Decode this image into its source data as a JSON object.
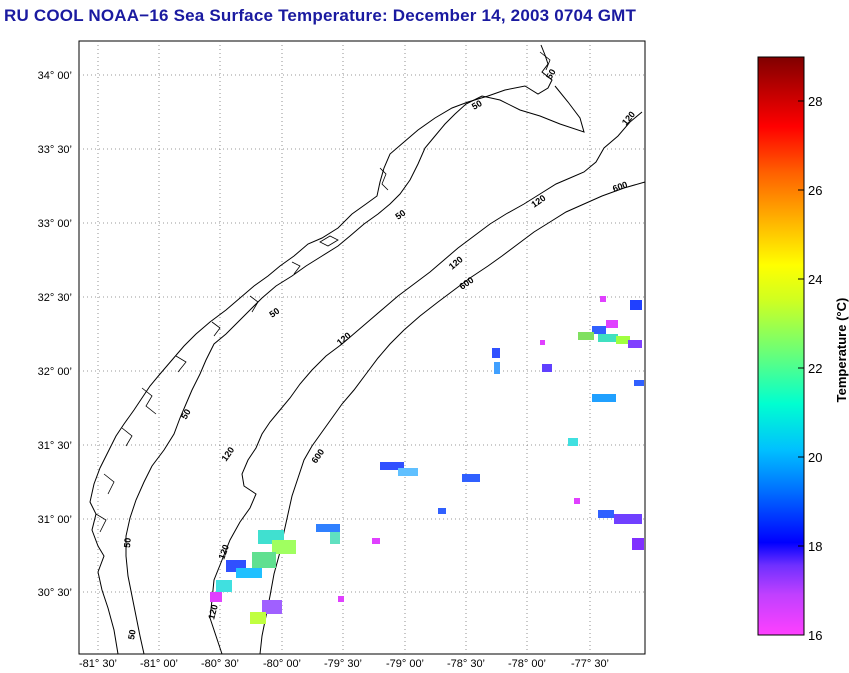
{
  "title": "RU COOL  NOAA−16  Sea Surface Temperature:  December 14, 2003 0704 GMT",
  "map": {
    "lat_labels": [
      "34° 00’",
      "33° 30’",
      "33° 00’",
      "32° 30’",
      "32° 00’",
      "31° 30’",
      "31° 00’",
      "30° 30’"
    ],
    "lon_labels": [
      "-81° 30’",
      "-81° 00’",
      "-80° 30’",
      "-80° 00’",
      "-79° 30’",
      "-79° 00’",
      "-78° 30’",
      "-78° 00’",
      "-77° 30’"
    ],
    "contour_labels": [
      "50",
      "50",
      "50",
      "50",
      "50",
      "120",
      "120",
      "120",
      "120",
      "120",
      "120",
      "600",
      "600",
      "600",
      "50"
    ]
  },
  "colorbar": {
    "title": "Temperature (°C)",
    "tick_labels": [
      "28",
      "26",
      "24",
      "22",
      "20",
      "18",
      "16"
    ],
    "range": [
      16,
      29
    ]
  }
}
